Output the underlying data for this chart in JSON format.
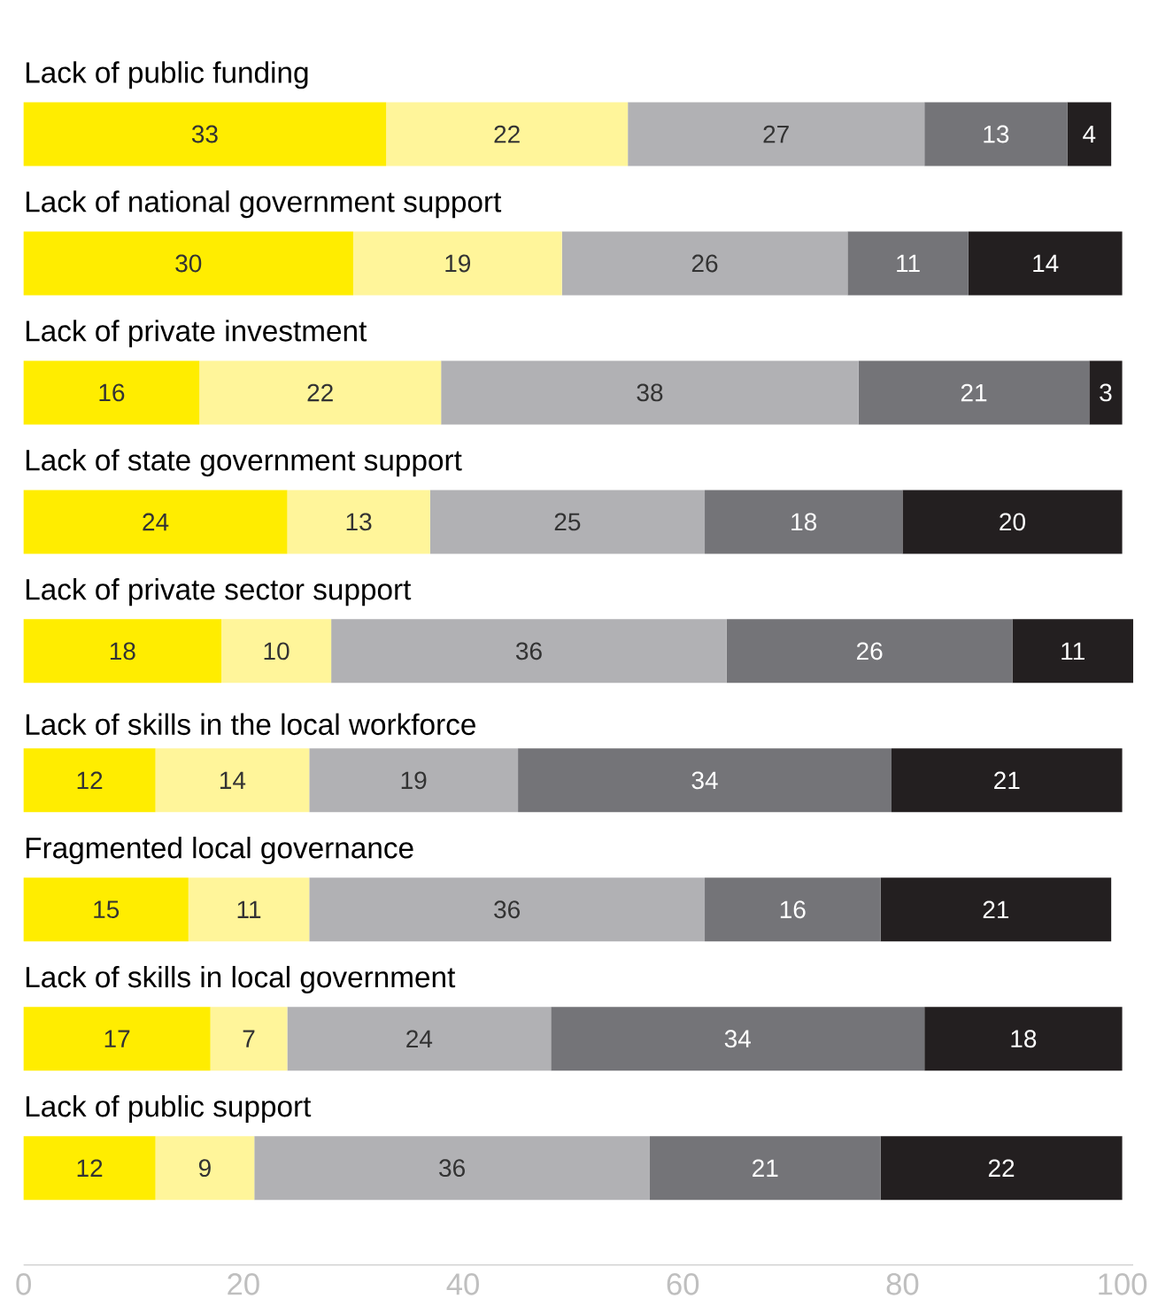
{
  "chart_data": {
    "type": "bar",
    "orientation": "horizontal",
    "stacked": true,
    "data_labels": true,
    "categories": [
      "Lack of public funding",
      "Lack of national government support",
      "Lack of private investment",
      "Lack of state government support",
      "Lack of private sector support",
      "Lack of skills in the local workforce",
      "Fragmented local governance",
      "Lack of skills in local government",
      "Lack of public support"
    ],
    "series": [
      {
        "color": "#ffed00",
        "values": [
          33,
          30,
          16,
          24,
          18,
          12,
          15,
          17,
          12
        ]
      },
      {
        "color": "#fff59a",
        "values": [
          22,
          19,
          22,
          13,
          10,
          14,
          11,
          7,
          9
        ]
      },
      {
        "color": "#b1b1b4",
        "values": [
          27,
          26,
          38,
          25,
          36,
          19,
          36,
          24,
          36
        ]
      },
      {
        "color": "#747478",
        "values": [
          13,
          11,
          21,
          18,
          26,
          34,
          16,
          34,
          21
        ]
      },
      {
        "color": "#231f20",
        "values": [
          4,
          14,
          3,
          20,
          11,
          21,
          21,
          18,
          22
        ]
      }
    ],
    "xlim": [
      0,
      101
    ],
    "xticks": [
      0,
      20,
      40,
      60,
      80,
      100
    ]
  }
}
